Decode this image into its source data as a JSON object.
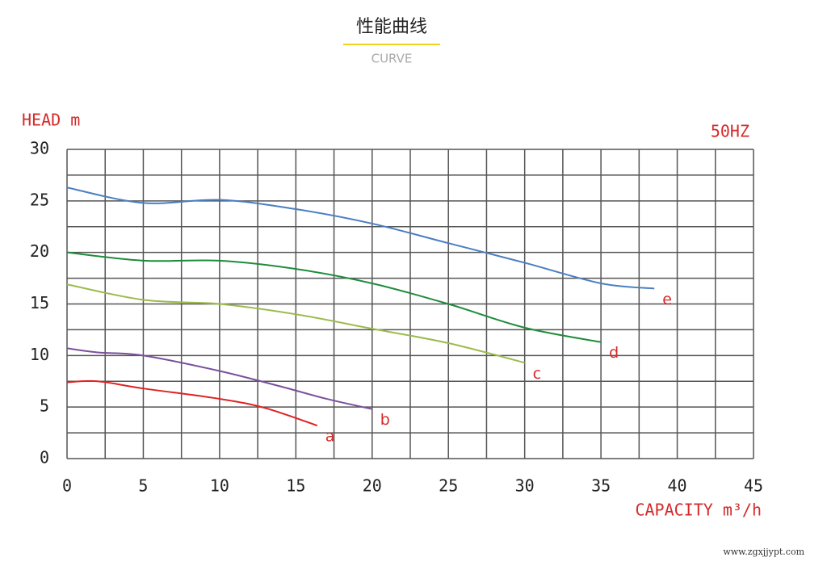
{
  "chart_data": {
    "type": "line",
    "title": "性能曲线",
    "subtitle": "CURVE",
    "y_label": "HEAD m",
    "x_label": "CAPACITY m³/h",
    "annotation": "50HZ",
    "xlim": [
      0,
      45
    ],
    "xticks": [
      0,
      5,
      10,
      15,
      20,
      25,
      30,
      35,
      40,
      45
    ],
    "ylim": [
      0,
      30
    ],
    "yticks": [
      0,
      5,
      10,
      15,
      20,
      25,
      30
    ],
    "grid": true,
    "minor_grid": true,
    "series": [
      {
        "name": "a",
        "color": "#e02222",
        "x": [
          0,
          2,
          5,
          10,
          13,
          16.4
        ],
        "values": [
          7.4,
          7.5,
          6.8,
          5.8,
          4.9,
          3.2
        ]
      },
      {
        "name": "b",
        "color": "#7a509c",
        "x": [
          0,
          2,
          5,
          10,
          14,
          17,
          20
        ],
        "values": [
          10.7,
          10.3,
          10,
          8.5,
          7,
          5.8,
          4.8
        ]
      },
      {
        "name": "c",
        "color": "#9cbb4c",
        "x": [
          0,
          5,
          10,
          15,
          20,
          25,
          30
        ],
        "values": [
          16.9,
          15.4,
          15,
          14,
          12.6,
          11.2,
          9.3
        ]
      },
      {
        "name": "d",
        "color": "#1e8c3c",
        "x": [
          0,
          5,
          10,
          15,
          20,
          25,
          30,
          35
        ],
        "values": [
          20,
          19.2,
          19.2,
          18.4,
          17,
          15,
          12.7,
          11.3
        ]
      },
      {
        "name": "e",
        "color": "#4a7ec2",
        "x": [
          0,
          5,
          10,
          15,
          20,
          25,
          30,
          35,
          38.5
        ],
        "values": [
          26.3,
          24.8,
          25.1,
          24.2,
          22.8,
          20.9,
          19,
          17,
          16.5
        ]
      }
    ]
  },
  "watermark": "www.zgxjjypt.com"
}
